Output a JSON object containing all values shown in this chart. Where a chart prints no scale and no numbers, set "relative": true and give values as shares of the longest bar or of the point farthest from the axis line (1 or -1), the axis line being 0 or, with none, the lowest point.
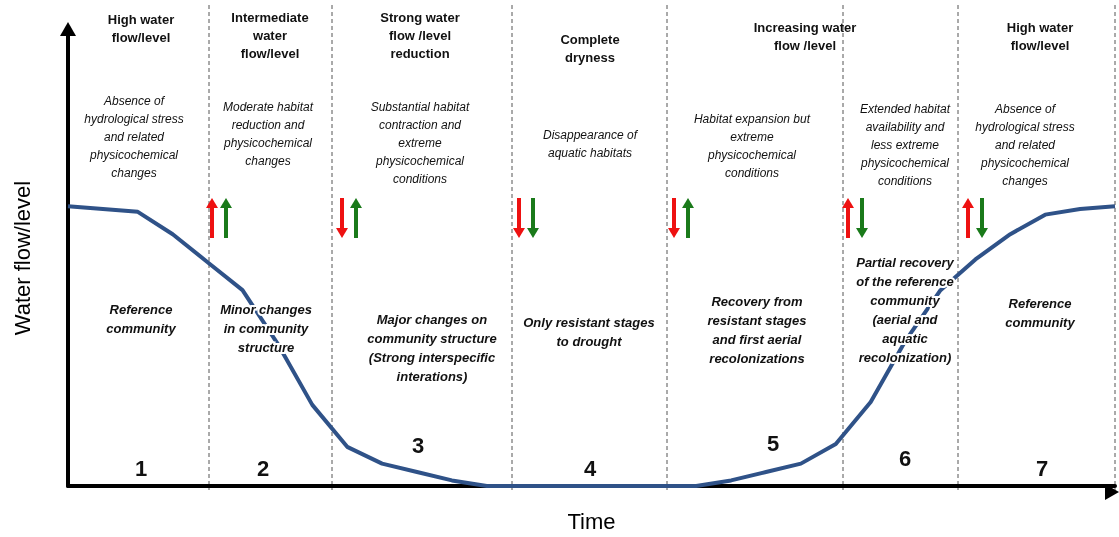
{
  "chart_data": {
    "type": "line",
    "xlabel": "Time",
    "ylabel": "Water flow/level",
    "relative": true,
    "marker": "none",
    "color": "#2f5288",
    "categories": [
      null,
      null,
      null,
      null,
      null,
      null,
      null,
      null,
      null,
      null,
      null,
      null,
      null,
      null,
      null,
      null,
      null,
      null,
      null,
      null,
      null,
      null,
      null,
      null,
      null,
      null,
      null,
      null,
      null,
      null,
      null
    ],
    "values": [
      1.0,
      0.99,
      0.98,
      0.9,
      0.8,
      0.7,
      0.51,
      0.29,
      0.14,
      0.08,
      0.05,
      0.02,
      0,
      0,
      0,
      0,
      0,
      0,
      0,
      0.02,
      0.05,
      0.08,
      0.15,
      0.3,
      0.52,
      0.7,
      0.81,
      0.9,
      0.97,
      0.99,
      1.0
    ],
    "annotations": [
      "High water\nflow/level",
      "Intermediate\nwater\nflow/level",
      "Strong water\nflow /level\nreduction",
      "Complete\ndryness",
      "Increasing water\nflow /level",
      "High water\nflow/level",
      "Absence of\nhydrological stress\nand related\nphysicochemical\nchanges",
      "Moderate habitat\nreduction and\nphysicochemical\nchanges",
      "Substantial habitat\ncontraction and\nextreme\nphysicochemical\nconditions",
      "Disappearance of\naquatic habitats",
      "Habitat expansion but\nextreme\nphysicochemical\nconditions",
      "Extended habitat\navailability and\nless extreme\nphysicochemical\nconditions",
      "Absence of\nhydrological stress\nand related\nphysicochemical\nchanges",
      "Reference\ncommunity",
      "Minor changes\nin community\nstructure",
      "Major changes on\ncommunity structure\n(Strong interspecific\ninterations)",
      "Only resistant stages\nto drought",
      "Recovery from\nresistant stages\nand first aerial\nrecolonizations",
      "Partial recovery\nof the reference\ncommunity\n(aerial and\naquatic\nrecolonization)",
      "Reference\ncommunity",
      "1",
      "2",
      "3",
      "4",
      "5",
      "6",
      "7"
    ]
  }
}
